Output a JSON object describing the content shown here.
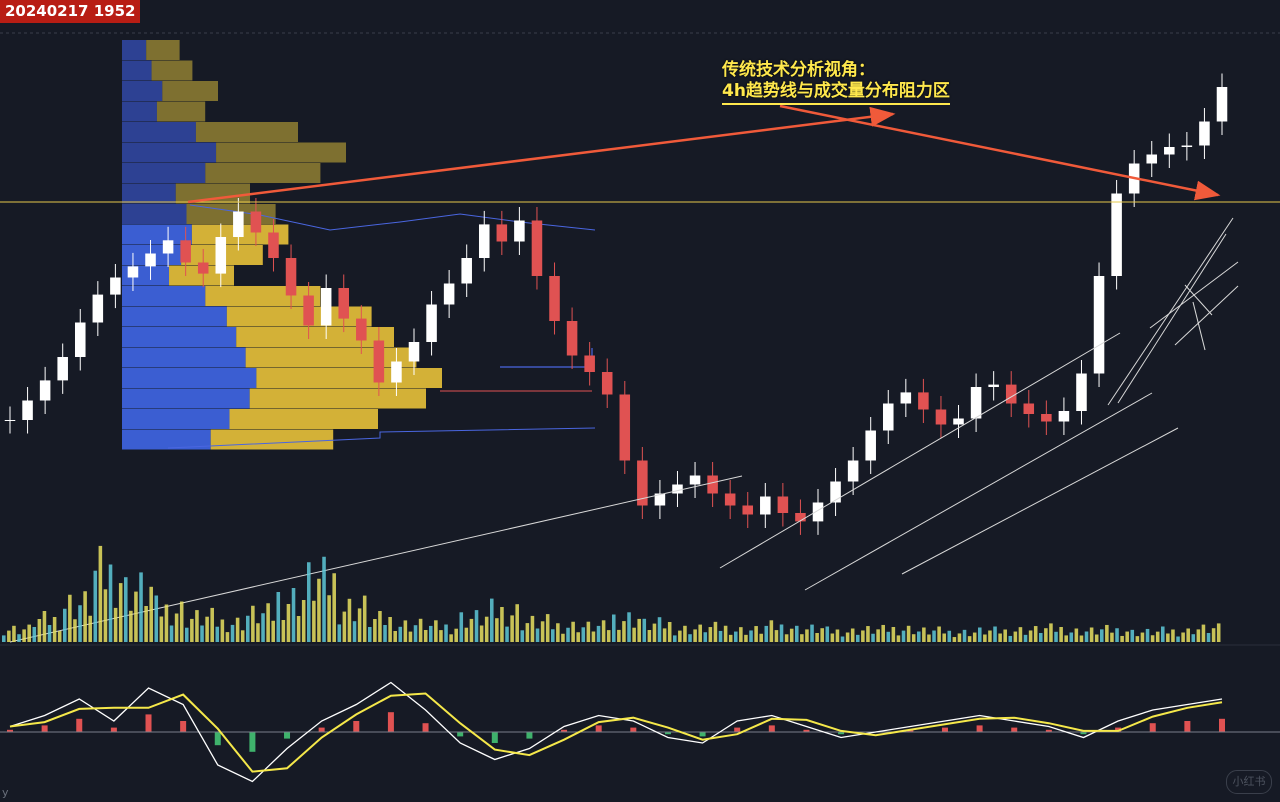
{
  "header": {
    "timestamp": "20240217 1952"
  },
  "annotation": {
    "line1": "传统技术分析视角：",
    "line2": "4h趋势线与成交量分布阻力区"
  },
  "watermark": {
    "text": "小红书"
  },
  "corner_mark": "y",
  "colors": {
    "background": "#161a25",
    "candle_up": "#ffffff",
    "candle_down": "#e05252",
    "volume_up": "#e8e060",
    "volume_down": "#5ec9d8",
    "profile_gold": "#e8c23a",
    "profile_gold_dim": "#8a7a32",
    "profile_blue": "#3f66e6",
    "profile_blue_dim": "#3046a0",
    "resistance_line": "#e6c84a",
    "arrow": "#f05a3a",
    "trendline": "#d8d8d8",
    "macd_line": "#ffffff",
    "signal_line": "#f5e84a",
    "histo_up": "#e05252",
    "histo_down": "#3fb26c"
  },
  "chart_data": [
    {
      "type": "line",
      "title": "",
      "grid": false,
      "series": [
        {
          "values": [
            42000,
            42650,
            43320,
            44100,
            45250,
            46180,
            46750,
            47120,
            47550,
            47990,
            47250,
            46880,
            48100,
            48950,
            48250,
            47400,
            46150,
            45150,
            46400,
            45380,
            44650,
            43250,
            43950,
            44600,
            45850,
            46550,
            47400,
            48520,
            47950,
            48650,
            46800,
            45300,
            44150,
            43600,
            42850,
            40650,
            39150,
            39550,
            39850,
            40150,
            39550,
            39150,
            38850,
            39450,
            38900,
            38620,
            39250,
            39950,
            40650,
            41650,
            42550,
            42920,
            42350,
            41850,
            42050,
            43100,
            43180,
            42550,
            42200,
            41950,
            42300,
            43550,
            46800,
            49550,
            50550,
            50850,
            51100,
            51150,
            51950,
            53100
          ]
        }
      ]
    },
    {
      "type": "bar",
      "title": "",
      "note_values": "volume profile, relative",
      "series": [
        {
          "values": [
            0.18,
            0.22,
            0.3,
            0.26,
            0.55,
            0.7,
            0.62,
            0.4,
            0.48,
            0.52,
            0.44,
            0.35,
            0.62,
            0.78,
            0.85,
            0.92,
            1.0,
            0.95,
            0.8,
            0.66
          ]
        }
      ]
    },
    {
      "type": "bar",
      "title": "",
      "series": [
        {
          "values": [
            0.12,
            0.2,
            0.35,
            0.62,
            0.48,
            0.3,
            0.22,
            0.18,
            0.25,
            0.4,
            0.55,
            0.32,
            0.2,
            0.16,
            0.14,
            0.22,
            0.28,
            0.18,
            0.15,
            0.14,
            0.22,
            0.16,
            0.12,
            0.13,
            0.11,
            0.14,
            0.12,
            0.1,
            0.11,
            0.12,
            0.1,
            0.09,
            0.1,
            0.11,
            0.12,
            0.1,
            0.11,
            0.09,
            0.1,
            0.12
          ]
        }
      ]
    },
    {
      "type": "line",
      "title": "",
      "series": [
        {
          "name": "",
          "values": [
            0.1,
            0.3,
            0.6,
            0.2,
            0.8,
            0.5,
            -0.6,
            -0.9,
            -0.3,
            0.2,
            0.5,
            0.9,
            0.4,
            -0.2,
            -0.5,
            -0.3,
            0.1,
            0.3,
            0.2,
            -0.1,
            -0.2,
            0.2,
            0.3,
            0.1,
            -0.1,
            0.0,
            0.1,
            0.2,
            0.3,
            0.2,
            0.1,
            -0.1,
            0.2,
            0.4,
            0.5,
            0.6
          ]
        }
      ]
    }
  ]
}
